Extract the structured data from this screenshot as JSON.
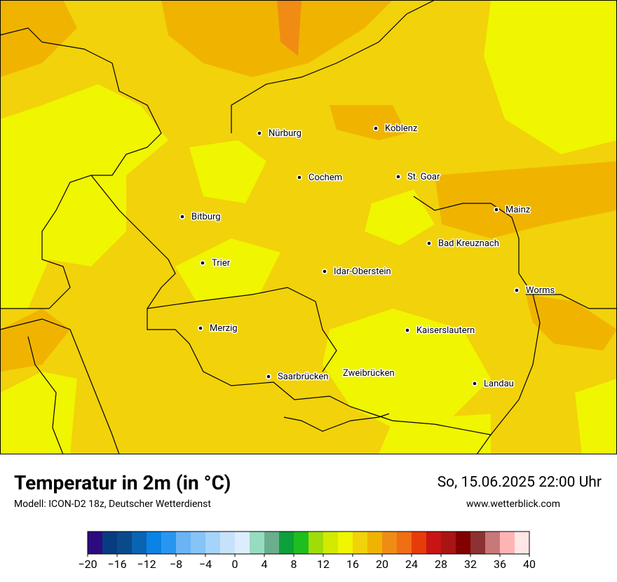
{
  "header": {
    "title": "Temperatur in 2m (in °C)",
    "subtitle": "Modell: ICON-D2 18z, Deutscher Wetterdienst",
    "date": "So, 15.06.2025 22:00 Uhr",
    "website": "www.wetterblick.com"
  },
  "map": {
    "cities": [
      "Nürburg",
      "Koblenz",
      "Cochem",
      "St. Goar",
      "Mainz",
      "Bitburg",
      "Bad Kreuznach",
      "Trier",
      "Idar-Oberstein",
      "Worms",
      "Merzig",
      "Kaiserslautern",
      "Saarbrücken",
      "Zweibrücken",
      "Landau"
    ]
  },
  "colorbar": {
    "range": [
      -20,
      40
    ],
    "colors": [
      "#2e0a80",
      "#083c80",
      "#0a4a8c",
      "#0a64b4",
      "#0a82e6",
      "#2896f0",
      "#6ab4f5",
      "#86c3f7",
      "#a6d3f9",
      "#c6e2fb",
      "#dceefd",
      "#96dcc0",
      "#6aae8e",
      "#0ea03a",
      "#1ebe1e",
      "#a0dc0a",
      "#d2ea00",
      "#f0f500",
      "#f2d20a",
      "#f0b400",
      "#f08c14",
      "#f06e14",
      "#e63c0a",
      "#c81414",
      "#aa1414",
      "#820000",
      "#8c3232",
      "#c87878",
      "#ffb4b4",
      "#ffe6e6"
    ],
    "ticks": [
      {
        "value": -20,
        "label": "−20"
      },
      {
        "value": -16,
        "label": "−16"
      },
      {
        "value": -12,
        "label": "−12"
      },
      {
        "value": -8,
        "label": "−8"
      },
      {
        "value": -4,
        "label": "−4"
      },
      0,
      4,
      8,
      12,
      16,
      20,
      24,
      28,
      32,
      36,
      40
    ]
  }
}
